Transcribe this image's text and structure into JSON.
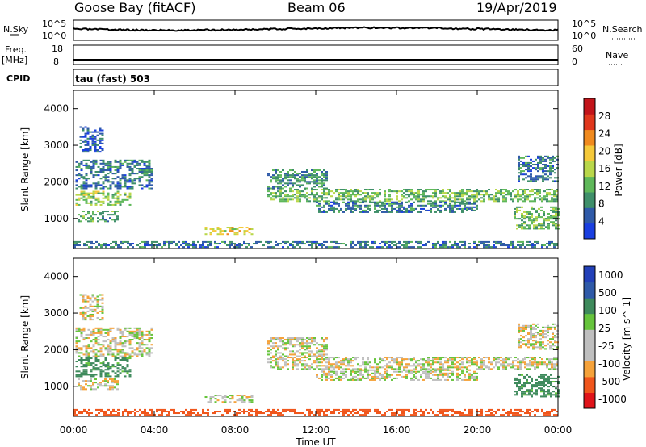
{
  "header": {
    "station": "Goose Bay (fitACF)",
    "beam": "Beam 06",
    "date": "19/Apr/2019"
  },
  "strip_labels": {
    "nsky": "N.Sky",
    "nsearch": "N.Search",
    "nsky_top": "10^5",
    "nsky_bottom": "10^0",
    "freq": "Freq.",
    "freq_unit": "[MHz]",
    "freq_top": "18",
    "freq_bottom": "8",
    "nave": "Nave",
    "nave_top": "60",
    "nave_bottom": "0",
    "cpid": "CPID",
    "cpid_value": "tau (fast) 503"
  },
  "colors": {
    "power": [
      "#1a3fe0",
      "#2f5aa8",
      "#3f8f6a",
      "#5fb85a",
      "#b9d74a",
      "#f5c93a",
      "#f08a1e",
      "#e0371c",
      "#c2141a"
    ],
    "velocity": [
      "#e0141a",
      "#f0561c",
      "#f5a23a",
      "#bfbfbf",
      "#bfbfbf",
      "#66c43c",
      "#3e8a5c",
      "#2f5aa8",
      "#2240b8"
    ]
  },
  "chart_data": [
    {
      "type": "heatmap",
      "panel": "power",
      "xlabel": "",
      "ylabel": "Slant Range [km]",
      "x_ticks": [
        "00:00",
        "04:00",
        "08:00",
        "12:00",
        "16:00",
        "20:00",
        "00:00"
      ],
      "x_range_hours": [
        0,
        24
      ],
      "ylim": [
        180,
        4500
      ],
      "y_ticks": [
        1000,
        2000,
        3000,
        4000
      ],
      "colorbar": {
        "label": "Power [dB]",
        "ticks": [
          "4",
          "8",
          "12",
          "16",
          "20",
          "24",
          "28"
        ]
      },
      "regions": [
        {
          "t0": 0.1,
          "t1": 2.8,
          "r0": 1350,
          "r1": 1750,
          "value_db": 14
        },
        {
          "t0": 0.1,
          "t1": 3.9,
          "r0": 1800,
          "r1": 2600,
          "value_db": 6
        },
        {
          "t0": 0.2,
          "t1": 2.2,
          "r0": 900,
          "r1": 1200,
          "value_db": 10
        },
        {
          "t0": 0.3,
          "t1": 1.5,
          "r0": 2800,
          "r1": 3500,
          "value_db": 4
        },
        {
          "t0": 6.5,
          "t1": 8.8,
          "r0": 550,
          "r1": 750,
          "value_db": 18
        },
        {
          "t0": 9.6,
          "t1": 24.0,
          "r0": 1450,
          "r1": 1800,
          "value_db": 12
        },
        {
          "t0": 9.6,
          "t1": 12.5,
          "r0": 1800,
          "r1": 2300,
          "value_db": 8
        },
        {
          "t0": 12.0,
          "t1": 20.0,
          "r0": 1150,
          "r1": 1450,
          "value_db": 6
        },
        {
          "t0": 21.8,
          "t1": 24.0,
          "r0": 700,
          "r1": 1300,
          "value_db": 12
        },
        {
          "t0": 22.0,
          "t1": 24.0,
          "r0": 2000,
          "r1": 2700,
          "value_db": 6
        },
        {
          "t0": 0.0,
          "t1": 24.0,
          "r0": 200,
          "r1": 350,
          "value_db": 6
        }
      ]
    },
    {
      "type": "heatmap",
      "panel": "velocity",
      "xlabel": "Time UT",
      "ylabel": "Slant Range [km]",
      "x_ticks": [
        "00:00",
        "04:00",
        "08:00",
        "12:00",
        "16:00",
        "20:00",
        "00:00"
      ],
      "x_range_hours": [
        0,
        24
      ],
      "ylim": [
        180,
        4500
      ],
      "y_ticks": [
        1000,
        2000,
        3000,
        4000
      ],
      "colorbar": {
        "label": "Velocity [m s^-1]",
        "ticks": [
          "1000",
          "500",
          "100",
          "25",
          "-25",
          "-100",
          "-500",
          "-1000"
        ]
      },
      "regions": [
        {
          "t0": 0.1,
          "t1": 2.8,
          "r0": 1250,
          "r1": 1750,
          "value_ms": 150
        },
        {
          "t0": 0.1,
          "t1": 3.9,
          "r0": 1800,
          "r1": 2600,
          "value_ms": 0
        },
        {
          "t0": 0.2,
          "t1": 2.2,
          "r0": 900,
          "r1": 1200,
          "value_ms": 0
        },
        {
          "t0": 0.3,
          "t1": 1.5,
          "r0": 2800,
          "r1": 3500,
          "value_ms": 0
        },
        {
          "t0": 6.5,
          "t1": 8.8,
          "r0": 550,
          "r1": 750,
          "value_ms": 0
        },
        {
          "t0": 9.6,
          "t1": 24.0,
          "r0": 1450,
          "r1": 1800,
          "value_ms": 0
        },
        {
          "t0": 9.6,
          "t1": 12.5,
          "r0": 1800,
          "r1": 2300,
          "value_ms": 0
        },
        {
          "t0": 12.0,
          "t1": 20.0,
          "r0": 1150,
          "r1": 1450,
          "value_ms": 0
        },
        {
          "t0": 21.8,
          "t1": 24.0,
          "r0": 700,
          "r1": 1300,
          "value_ms": 150
        },
        {
          "t0": 22.0,
          "t1": 24.0,
          "r0": 2000,
          "r1": 2700,
          "value_ms": 0
        },
        {
          "t0": 0.0,
          "t1": 24.0,
          "r0": 200,
          "r1": 350,
          "value_ms": -200
        }
      ]
    }
  ]
}
